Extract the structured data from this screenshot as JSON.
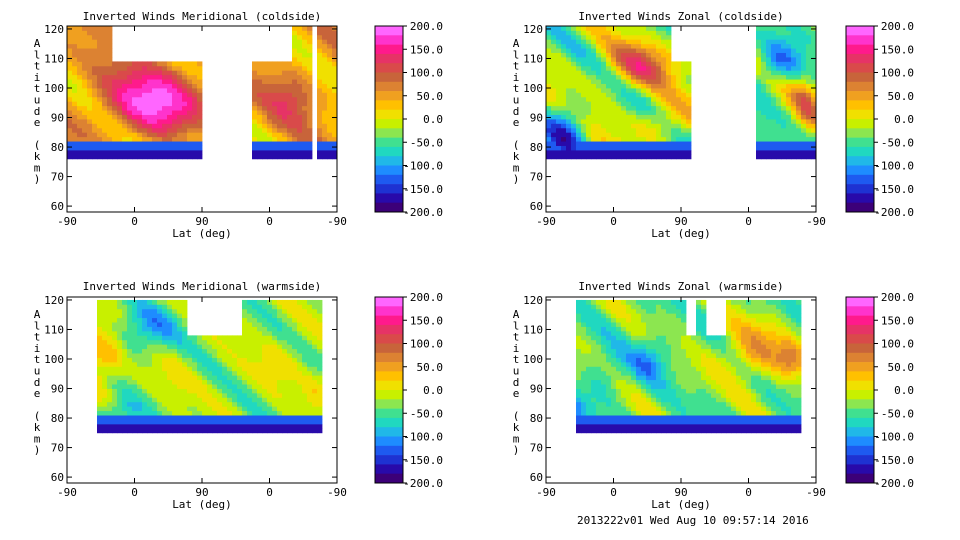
{
  "footer": "2013222v01 Wed Aug 10 09:57:14 2016",
  "colorbar": {
    "ticks": [
      "200.0",
      "150.0",
      "100.0",
      "50.0",
      "0.0",
      "-50.0",
      "-100.0",
      "-150.0",
      "-200.0"
    ],
    "palette": [
      "#ff66ff",
      "#ff33cc",
      "#ff1a8c",
      "#e63366",
      "#d94a4a",
      "#c8643a",
      "#dc8232",
      "#f0a020",
      "#ffc000",
      "#f0e000",
      "#c8f000",
      "#8ce650",
      "#40e090",
      "#20d8c0",
      "#20b8e8",
      "#1e8cff",
      "#1e5af0",
      "#1e32d2",
      "#280aaa",
      "#3c0078"
    ]
  },
  "chart_data": [
    {
      "type": "heatmap",
      "title": "Inverted Winds Meridional (coldside)",
      "xlabel": "Lat (deg)",
      "ylabel": "Altitude (km)",
      "xticks": [
        "-90",
        "0",
        "90",
        "0",
        "-90"
      ],
      "yticks": [
        "60",
        "70",
        "80",
        "90",
        "100",
        "110",
        "120"
      ],
      "ylim": [
        58,
        121
      ],
      "clim": [
        -200,
        200
      ],
      "coverage": [
        [
          -90,
          46
        ],
        [
          94,
          156
        ],
        [
          158,
          180
        ]
      ],
      "gap_top": [
        [
          -45,
          45
        ],
        [
          55,
          135
        ]
      ],
      "base_km": 76,
      "field": {
        "base": 40,
        "waves": [
          [
            35,
            0.05,
            0.15,
            0.0
          ],
          [
            20,
            0.09,
            0.3,
            1.2
          ]
        ],
        "blobs": [
          [
            0,
            96,
            55,
            12,
            135
          ],
          [
            135,
            97,
            25,
            9,
            60
          ],
          [
            30,
            82,
            30,
            6,
            -40
          ]
        ]
      }
    },
    {
      "type": "heatmap",
      "title": "Inverted Winds Zonal (coldside)",
      "xlabel": "Lat (deg)",
      "ylabel": "Altitude (km)",
      "xticks": [
        "-90",
        "0",
        "90",
        "0",
        "-90"
      ],
      "yticks": [
        "60",
        "70",
        "80",
        "90",
        "100",
        "110",
        "120"
      ],
      "ylim": [
        58,
        121
      ],
      "clim": [
        -200,
        200
      ],
      "coverage": [
        [
          -90,
          56
        ],
        [
          120,
          180
        ]
      ],
      "gap_top": [
        [
          35,
          112
        ]
      ],
      "base_km": 76,
      "field": {
        "base": -25,
        "waves": [
          [
            45,
            0.055,
            0.18,
            0.4
          ],
          [
            25,
            0.1,
            0.35,
            2.0
          ]
        ],
        "blobs": [
          [
            5,
            108,
            35,
            8,
            110
          ],
          [
            25,
            88,
            25,
            6,
            60
          ],
          [
            140,
            108,
            25,
            8,
            -90
          ],
          [
            -70,
            85,
            20,
            10,
            -100
          ],
          [
            170,
            95,
            15,
            10,
            70
          ]
        ]
      }
    },
    {
      "type": "heatmap",
      "title": "Inverted Winds Meridional (warmside)",
      "xlabel": "Lat (deg)",
      "ylabel": "Altitude (km)",
      "xticks": [
        "-90",
        "0",
        "90",
        "0",
        "-90"
      ],
      "yticks": [
        "60",
        "70",
        "80",
        "90",
        "100",
        "110",
        "120"
      ],
      "ylim": [
        58,
        121
      ],
      "clim": [
        -200,
        200
      ],
      "coverage": [
        [
          -62,
          88
        ],
        [
          92,
          166
        ]
      ],
      "gap_top": [
        [
          32,
          66
        ],
        [
          66,
          85
        ]
      ],
      "base_km": 75,
      "field": {
        "base": -25,
        "waves": [
          [
            25,
            0.06,
            0.2,
            0.8
          ],
          [
            18,
            0.11,
            0.35,
            2.5
          ]
        ],
        "blobs": [
          [
            -55,
            100,
            20,
            10,
            70
          ],
          [
            -10,
            110,
            30,
            8,
            -70
          ],
          [
            15,
            93,
            25,
            8,
            20
          ],
          [
            120,
            99,
            25,
            8,
            30
          ],
          [
            160,
            90,
            15,
            8,
            30
          ],
          [
            -40,
            82,
            25,
            5,
            -60
          ]
        ]
      }
    },
    {
      "type": "heatmap",
      "title": "Inverted Winds Zonal (warmside)",
      "xlabel": "Lat (deg)",
      "ylabel": "Altitude (km)",
      "xticks": [
        "-90",
        "0",
        "90",
        "0",
        "-90"
      ],
      "yticks": [
        "60",
        "70",
        "80",
        "90",
        "100",
        "110",
        "120"
      ],
      "ylim": [
        58,
        121
      ],
      "clim": [
        -200,
        200
      ],
      "coverage": [
        [
          -60,
          88
        ],
        [
          92,
          166
        ]
      ],
      "gap_top": [
        [
          52,
          62
        ],
        [
          70,
          88
        ]
      ],
      "base_km": 75,
      "field": {
        "base": -35,
        "waves": [
          [
            30,
            0.06,
            0.22,
            1.6
          ],
          [
            18,
            0.12,
            0.3,
            0.4
          ]
        ],
        "blobs": [
          [
            120,
            103,
            35,
            10,
            80
          ],
          [
            155,
            100,
            15,
            6,
            70
          ],
          [
            15,
            100,
            20,
            8,
            -60
          ],
          [
            -30,
            95,
            20,
            8,
            -40
          ],
          [
            -70,
            83,
            20,
            6,
            -70
          ]
        ]
      }
    }
  ]
}
